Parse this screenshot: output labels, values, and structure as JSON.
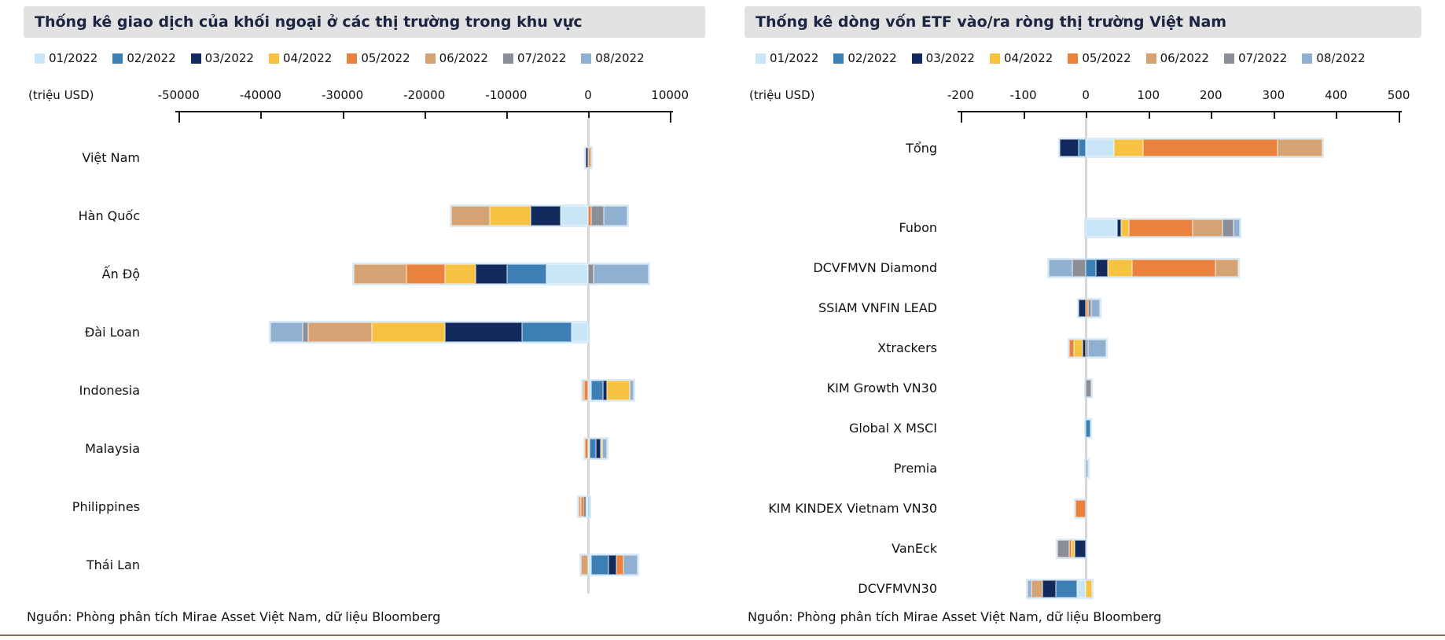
{
  "page": {
    "bottom_rule_color": "#8a6d51",
    "footer": "Nguồn: Phòng phân tích Mirae Asset Việt Nam, dữ liệu Bloomberg"
  },
  "colors": {
    "title_bg": "#e2e2e2",
    "title_text": "#1b2440",
    "axis": "#1a1a1a",
    "zero_gridline": "#d6d6d6",
    "bar_halo": "#cde4f6"
  },
  "legend": [
    {
      "label": "01/2022",
      "color": "#c9e6f8"
    },
    {
      "label": "02/2022",
      "color": "#3b7fb5"
    },
    {
      "label": "03/2022",
      "color": "#122a5e"
    },
    {
      "label": "04/2022",
      "color": "#f5c242"
    },
    {
      "label": "05/2022",
      "color": "#e8823c"
    },
    {
      "label": "06/2022",
      "color": "#d4a273"
    },
    {
      "label": "07/2022",
      "color": "#8b8e96"
    },
    {
      "label": "08/2022",
      "color": "#90b0d1"
    }
  ],
  "chart_data": [
    {
      "type": "bar",
      "orientation": "horizontal-stacked",
      "title": "Thống kê giao dịch của khối ngoại ở các thị trường trong khu vực",
      "unit_label": "(triệu USD)",
      "xlim": [
        -53000,
        12000
      ],
      "ticks": [
        -50000,
        -40000,
        -30000,
        -20000,
        -10000,
        0,
        10000
      ],
      "grid": "zero-line-only",
      "legend_position": "top",
      "categories": [
        "Việt Nam",
        "Hàn Quốc",
        "Ấn Độ",
        "Đài Loan",
        "Indonesia",
        "Malaysia",
        "Philippines",
        "Thái Lan"
      ],
      "series": [
        {
          "name": "01/2022",
          "values": [
            0,
            -3400,
            -5100,
            -2000,
            400,
            200,
            -300,
            400
          ]
        },
        {
          "name": "02/2022",
          "values": [
            0,
            0,
            -4800,
            -6100,
            1400,
            800,
            0,
            2100
          ]
        },
        {
          "name": "03/2022",
          "values": [
            -300,
            -3600,
            -3800,
            -9400,
            500,
            550,
            -200,
            950
          ]
        },
        {
          "name": "04/2022",
          "values": [
            0,
            -5000,
            -3800,
            -8900,
            2800,
            200,
            0,
            0
          ]
        },
        {
          "name": "05/2022",
          "values": [
            0,
            400,
            -4700,
            0,
            -500,
            -400,
            -400,
            850
          ]
        },
        {
          "name": "06/2022",
          "values": [
            400,
            -4700,
            -6400,
            -7800,
            -200,
            0,
            -250,
            -900
          ]
        },
        {
          "name": "07/2022",
          "values": [
            0,
            1500,
            700,
            -700,
            0,
            0,
            0,
            0
          ]
        },
        {
          "name": "08/2022",
          "values": [
            0,
            2900,
            6700,
            -3900,
            500,
            550,
            150,
            1700
          ]
        }
      ]
    },
    {
      "type": "bar",
      "orientation": "horizontal-stacked",
      "title": "Thống kê dòng vốn ETF vào/ra ròng thị trường Việt Nam",
      "unit_label": "(triệu USD)",
      "xlim": [
        -215,
        515
      ],
      "ticks": [
        -200,
        -100,
        0,
        100,
        200,
        300,
        400,
        500
      ],
      "grid": "zero-line-only",
      "legend_position": "top",
      "categories": [
        "Tổng",
        "Fubon",
        "DCVFMVN Diamond",
        "SSIAM VNFIN LEAD",
        "Xtrackers",
        "KIM Growth VN30",
        "Global X MSCI",
        "Premia",
        "KIM KINDEX Vietnam VN30",
        "VanEck",
        "DCVFMVN30"
      ],
      "series": [
        {
          "name": "01/2022",
          "values": [
            45,
            50,
            0,
            0,
            0,
            0,
            0,
            0,
            0,
            0,
            -14
          ]
        },
        {
          "name": "02/2022",
          "values": [
            -12,
            0,
            16,
            0,
            0,
            0,
            7,
            0,
            0,
            0,
            -34
          ]
        },
        {
          "name": "03/2022",
          "values": [
            -30,
            6,
            19,
            -12,
            -5,
            0,
            0,
            0,
            0,
            -18,
            -21
          ]
        },
        {
          "name": "04/2022",
          "values": [
            46,
            13,
            39,
            0,
            -14,
            0,
            0,
            0,
            0,
            -5,
            10
          ]
        },
        {
          "name": "05/2022",
          "values": [
            215,
            102,
            133,
            4,
            -7,
            0,
            0,
            0,
            -17,
            -4,
            0
          ]
        },
        {
          "name": "06/2022",
          "values": [
            72,
            47,
            36,
            0,
            0,
            0,
            0,
            0,
            0,
            0,
            -18
          ]
        },
        {
          "name": "07/2022",
          "values": [
            0,
            18,
            -21,
            5,
            4,
            9,
            0,
            0,
            0,
            -18,
            0
          ]
        },
        {
          "name": "08/2022",
          "values": [
            0,
            10,
            -38,
            13,
            28,
            0,
            0,
            4,
            0,
            0,
            -6
          ]
        }
      ]
    }
  ]
}
